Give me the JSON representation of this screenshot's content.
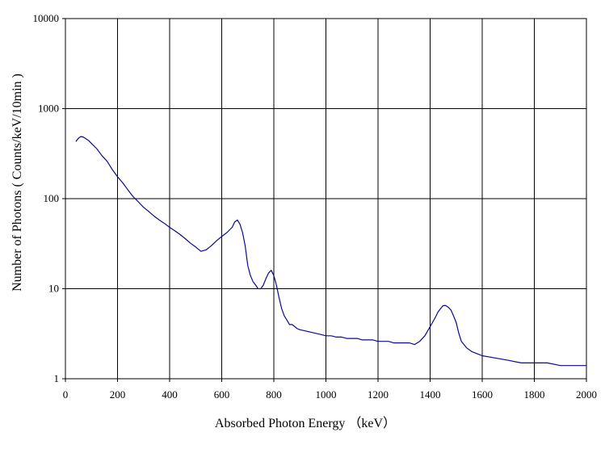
{
  "chart_data": {
    "type": "line",
    "xlabel": "Absorbed Photon Energy （keV）",
    "ylabel": "Number of Photons ( Counts/keV/10min )",
    "xlim": [
      0,
      2000
    ],
    "ylim": [
      1,
      10000
    ],
    "yscale": "log",
    "grid": true,
    "xticks": [
      "0",
      "200",
      "400",
      "600",
      "800",
      "1000",
      "1200",
      "1400",
      "1600",
      "1800",
      "2000"
    ],
    "yticks": [
      "1",
      "10",
      "100",
      "1000",
      "10000"
    ],
    "colors": {
      "line": "#0a0a8c",
      "grid": "#000000"
    },
    "series": [
      {
        "x": [
          40,
          50,
          60,
          70,
          80,
          90,
          100,
          120,
          140,
          160,
          180,
          200,
          220,
          240,
          260,
          280,
          300,
          320,
          340,
          360,
          380,
          400,
          420,
          440,
          460,
          480,
          500,
          520,
          540,
          560,
          580,
          600,
          620,
          640,
          650,
          660,
          670,
          680,
          690,
          700,
          710,
          720,
          730,
          740,
          750,
          760,
          770,
          780,
          790,
          800,
          810,
          820,
          830,
          840,
          850,
          860,
          870,
          880,
          890,
          900,
          920,
          940,
          960,
          980,
          1000,
          1020,
          1040,
          1060,
          1080,
          1100,
          1120,
          1140,
          1160,
          1180,
          1200,
          1220,
          1240,
          1260,
          1280,
          1300,
          1320,
          1340,
          1360,
          1380,
          1400,
          1420,
          1430,
          1440,
          1450,
          1460,
          1470,
          1480,
          1490,
          1500,
          1510,
          1520,
          1540,
          1560,
          1580,
          1600,
          1650,
          1700,
          1750,
          1800,
          1850,
          1900,
          1950,
          2000
        ],
        "y": [
          430,
          470,
          490,
          480,
          460,
          440,
          410,
          360,
          300,
          260,
          210,
          175,
          150,
          125,
          105,
          92,
          80,
          72,
          64,
          58,
          53,
          48,
          44,
          40,
          36,
          32,
          29,
          26,
          27,
          30,
          34,
          38,
          42,
          48,
          55,
          58,
          52,
          42,
          30,
          18,
          14,
          12,
          11,
          10,
          10,
          11,
          13,
          15,
          16,
          14,
          11,
          8,
          6,
          5,
          4.5,
          4,
          4,
          3.8,
          3.6,
          3.5,
          3.4,
          3.3,
          3.2,
          3.1,
          3,
          3,
          2.9,
          2.9,
          2.8,
          2.8,
          2.8,
          2.7,
          2.7,
          2.7,
          2.6,
          2.6,
          2.6,
          2.5,
          2.5,
          2.5,
          2.5,
          2.4,
          2.6,
          3,
          3.8,
          4.8,
          5.5,
          6,
          6.5,
          6.5,
          6.2,
          5.8,
          5,
          4.2,
          3.2,
          2.6,
          2.2,
          2,
          1.9,
          1.8,
          1.7,
          1.6,
          1.5,
          1.5,
          1.5,
          1.4,
          1.4,
          1.4
        ]
      }
    ]
  }
}
